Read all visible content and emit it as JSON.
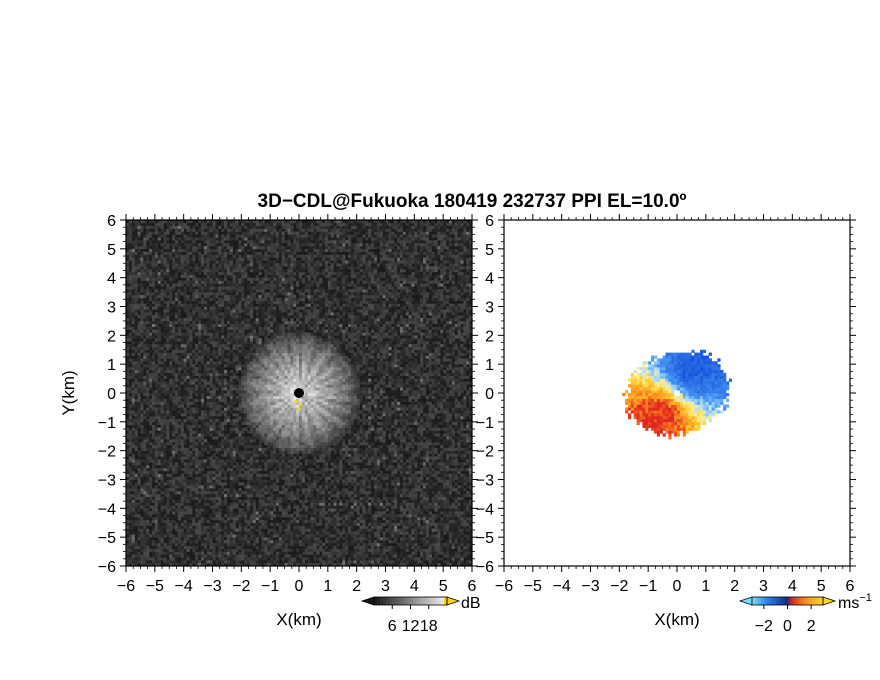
{
  "title": "3D−CDL@Fukuoka 180419 232737 PPI EL=10.0º",
  "chart_data": [
    {
      "type": "heatmap",
      "panel": "left",
      "xlabel": "X(km)",
      "ylabel": "Y(km)",
      "xlim": [
        -6,
        6
      ],
      "ylim": [
        -6,
        6
      ],
      "xticks": [
        "−6",
        "−5",
        "−4",
        "−3",
        "−2",
        "−1",
        "0",
        "1",
        "2",
        "3",
        "4",
        "5",
        "6"
      ],
      "yticks": [
        "−6",
        "−5",
        "−4",
        "−3",
        "−2",
        "−1",
        "0",
        "1",
        "2",
        "3",
        "4",
        "5",
        "6"
      ],
      "colorbar": {
        "unit": "dB",
        "ticks": [
          "6",
          "12",
          "18"
        ],
        "tick_values": [
          6,
          12,
          18
        ],
        "range": [
          0,
          24
        ]
      },
      "field": {
        "background_db": 2,
        "peak_db": 22,
        "echo_radius_km": 2.2,
        "center": [
          0,
          0
        ]
      }
    },
    {
      "type": "heatmap",
      "panel": "right",
      "xlabel": "X(km)",
      "ylabel": "",
      "xlim": [
        -6,
        6
      ],
      "ylim": [
        -6,
        6
      ],
      "xticks": [
        "−6",
        "−5",
        "−4",
        "−3",
        "−2",
        "−1",
        "0",
        "1",
        "2",
        "3",
        "4",
        "5",
        "6"
      ],
      "yticks": [
        "−6",
        "−5",
        "−4",
        "−3",
        "−2",
        "−1",
        "0",
        "1",
        "2",
        "3",
        "4",
        "5",
        "6"
      ],
      "colorbar": {
        "unit": "ms",
        "unit_sup": "−1",
        "ticks": [
          "−2",
          "0",
          "2"
        ],
        "tick_values": [
          -2,
          0,
          2
        ],
        "range": [
          -3,
          3
        ]
      },
      "field": {
        "min_ms": -3,
        "max_ms": 3,
        "echo_radius_km": 1.6,
        "center": [
          0,
          0
        ]
      }
    }
  ],
  "colors": {
    "left_background": "#1a1a1a",
    "approaching_blue": "#1f5fe0",
    "light_blue": "#8fd0ff",
    "receding_orange": "#ff8a1a",
    "yellow": "#ffd21a",
    "red": "#e0261f"
  }
}
